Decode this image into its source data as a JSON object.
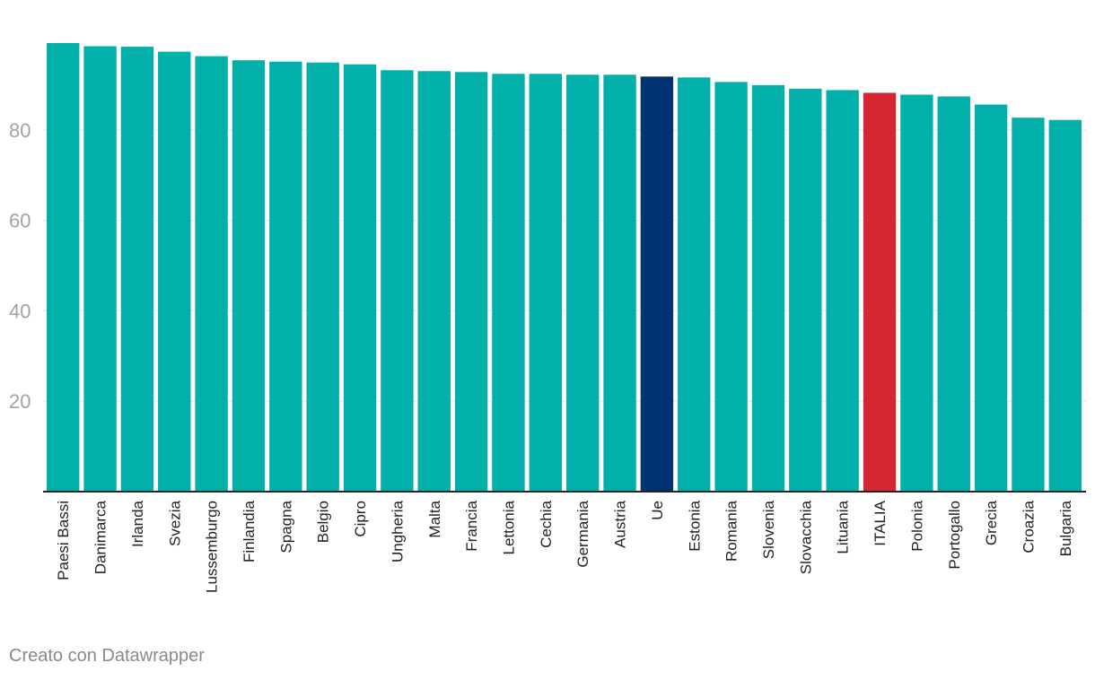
{
  "colors": {
    "default_bar": "#00b0a9",
    "eu_bar": "#003170",
    "italy_bar": "#d42731",
    "tick_text": "#a3a3a3",
    "grid": "#e6e6e6",
    "axis": "#222222",
    "label_text": "#222222",
    "credit_text": "#8a8a8a"
  },
  "chart_data": {
    "type": "bar",
    "title": "",
    "xlabel": "",
    "ylabel": "",
    "ylim": [
      0,
      100
    ],
    "yticks": [
      20,
      40,
      60,
      80
    ],
    "grid": true,
    "categories": [
      "Paesi Bassi",
      "Danimarca",
      "Irlanda",
      "Svezia",
      "Lussemburgo",
      "Finlandia",
      "Spagna",
      "Belgio",
      "Cipro",
      "Ungheria",
      "Malta",
      "Francia",
      "Lettonia",
      "Cechia",
      "Germania",
      "Austria",
      "Ue",
      "Estonia",
      "Romania",
      "Slovenia",
      "Slovacchia",
      "Lituania",
      "ITALIA",
      "Polonia",
      "Portogallo",
      "Grecia",
      "Croazia",
      "Bulgaria"
    ],
    "values": [
      99.2,
      98.5,
      98.4,
      97.3,
      96.3,
      95.4,
      95.1,
      94.9,
      94.5,
      93.2,
      93.0,
      92.8,
      92.4,
      92.4,
      92.2,
      92.2,
      91.8,
      91.6,
      90.6,
      89.9,
      89.1,
      88.8,
      88.2,
      87.8,
      87.4,
      85.6,
      82.7,
      82.2
    ],
    "highlights": {
      "Ue": "eu_bar",
      "ITALIA": "italy_bar"
    }
  },
  "footer": {
    "credit": "Creato con Datawrapper"
  }
}
